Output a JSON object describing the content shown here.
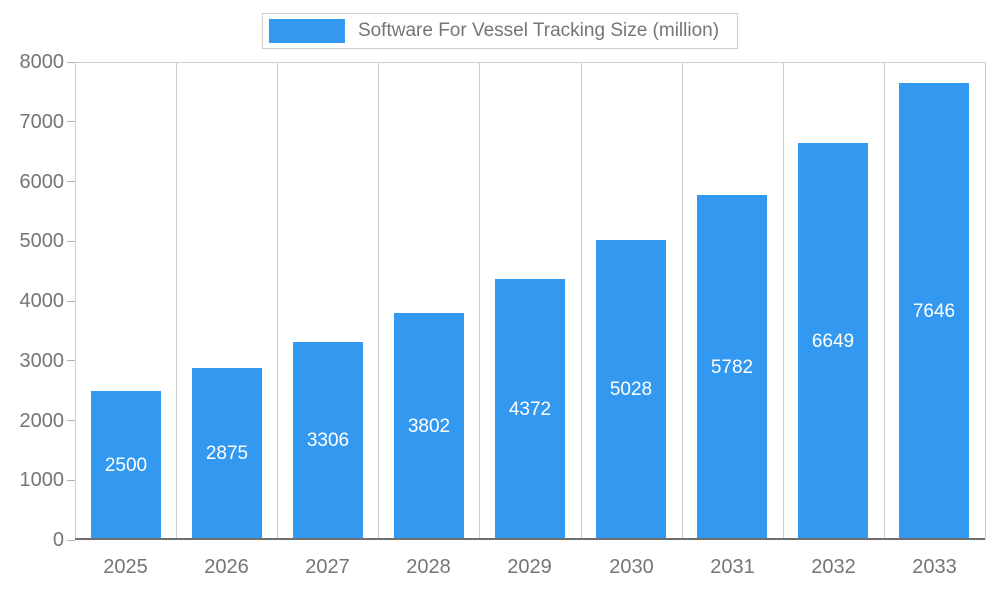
{
  "chart_data": {
    "type": "bar",
    "title": "Software For Vessel Tracking Size (million)",
    "categories": [
      "2025",
      "2026",
      "2027",
      "2028",
      "2029",
      "2030",
      "2031",
      "2032",
      "2033"
    ],
    "values": [
      2500,
      2875,
      3306,
      3802,
      4372,
      5028,
      5782,
      6649,
      7646
    ],
    "xlabel": "",
    "ylabel": "",
    "ylim": [
      0,
      8000
    ],
    "y_ticks": [
      0,
      1000,
      2000,
      3000,
      4000,
      5000,
      6000,
      7000,
      8000
    ],
    "grid": "vertical",
    "legend_position": "top-center",
    "bar_color": "#3399f0",
    "bar_label_color": "#ffffff",
    "axis_text_color": "#757575",
    "gridline_color": "#cccccc"
  }
}
